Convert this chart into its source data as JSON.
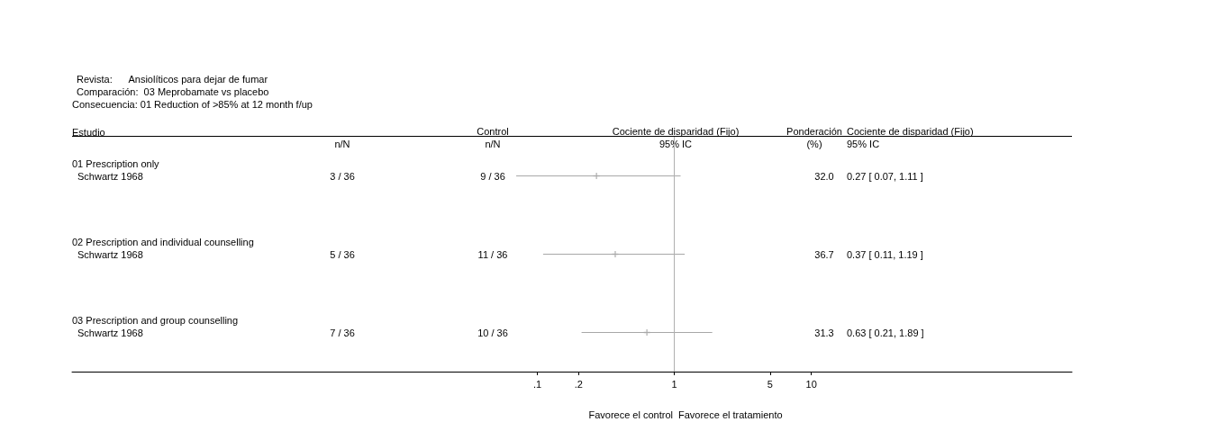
{
  "chart_data": {
    "type": "scatter",
    "orientation": "horizontal",
    "title": "Revista:      Ansiolíticos para dejar de fumar",
    "subtitle": "Comparación:  03 Meprobamate vs placebo",
    "categories": [
      "Schwartz 1968",
      "Schwartz 1968",
      "Schwartz 1968"
    ],
    "series": [
      {
        "color": "#a8a8a8",
        "values": [
          0.27,
          0.37,
          0.63
        ],
        "errors": [
          [
            0.07,
            1.11
          ],
          [
            0.11,
            1.19
          ],
          [
            0.21,
            1.89
          ]
        ]
      }
    ],
    "log": "x",
    "xlim": [
      4e-05,
      800
    ],
    "xticks": [
      {
        "value": 0.1,
        "label": ".1"
      },
      {
        "value": 0.2,
        "label": ".2"
      },
      1,
      5,
      10
    ],
    "ref_lines": [
      {
        "axis": "x",
        "value": 1,
        "color": "#b0b0b0"
      }
    ],
    "grid": false,
    "marker": "cross",
    "annotations": [
      "Consecuencia: 01 Reduction of >85% at 12 month f/up",
      "Estudio",
      "n/N",
      "Control\nn/N",
      "Cociente de disparidad (Fijo)\n95% IC",
      "Ponderación\n(%)",
      "Cociente de disparidad (Fijo)\n95% IC",
      "01 Prescription only",
      "3 / 36",
      "9 / 36",
      "32.0",
      "0.27 [ 0.07, 1.11 ]",
      "02 Prescription and individual counselling",
      "5 / 36",
      "11 / 36",
      "36.7",
      "0.37 [ 0.11, 1.19 ]",
      "03 Prescription and group counselling",
      "7 / 36",
      "10 / 36",
      "31.3",
      "0.63 [ 0.21, 1.89 ]",
      "Favorece el control",
      "Favorece el tratamiento"
    ]
  }
}
